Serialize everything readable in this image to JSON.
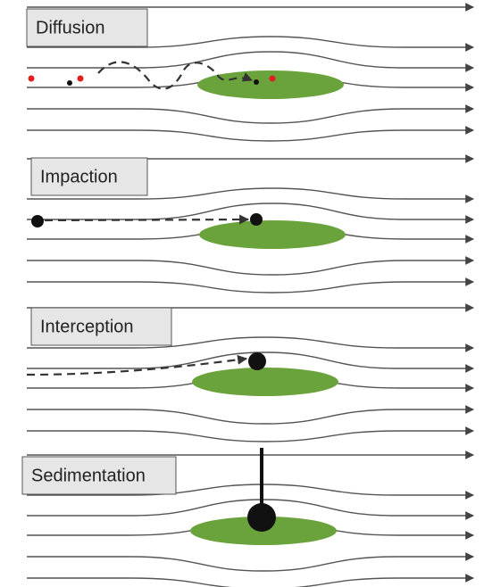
{
  "panels": [
    {
      "label": "Diffusion"
    },
    {
      "label": "Impaction"
    },
    {
      "label": "Interception"
    },
    {
      "label": "Sedimentation"
    }
  ]
}
